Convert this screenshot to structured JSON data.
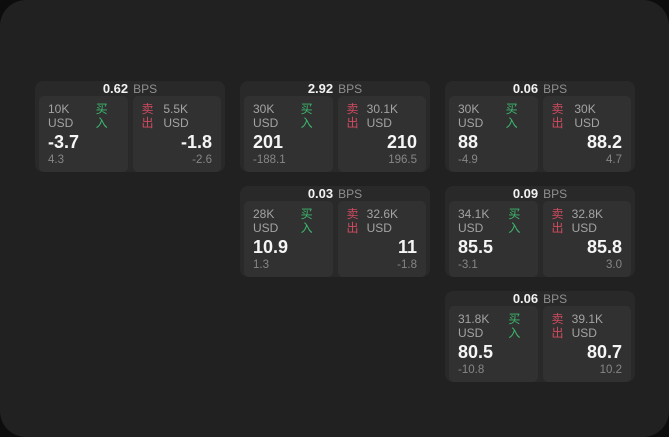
{
  "labels": {
    "bps": "BPS",
    "buy": "买入",
    "sell": "卖出"
  },
  "colors": {
    "backdrop": "#0d0d0d",
    "window_bg": "#212121",
    "card_bg": "#292929",
    "panel_bg": "#313131",
    "buy_green": "#3cb96e",
    "sell_red": "#d14b60",
    "primary_text": "#f5f5f5",
    "secondary_text": "#a3a3a3",
    "muted_text": "#868686"
  },
  "cards": [
    {
      "bps": "0.62",
      "buy_amount": "10K USD",
      "buy_value": "-3.7",
      "buy_sub": "4.3",
      "sell_amount": "5.5K USD",
      "sell_value": "-1.8",
      "sell_sub": "-2.6"
    },
    {
      "bps": "2.92",
      "buy_amount": "30K USD",
      "buy_value": "201",
      "buy_sub": "-188.1",
      "sell_amount": "30.1K USD",
      "sell_value": "210",
      "sell_sub": "196.5"
    },
    {
      "bps": "0.06",
      "buy_amount": "30K USD",
      "buy_value": "88",
      "buy_sub": "-4.9",
      "sell_amount": "30K USD",
      "sell_value": "88.2",
      "sell_sub": "4.7"
    },
    {
      "bps": "0.03",
      "buy_amount": "28K USD",
      "buy_value": "10.9",
      "buy_sub": "1.3",
      "sell_amount": "32.6K USD",
      "sell_value": "11",
      "sell_sub": "-1.8"
    },
    {
      "bps": "0.09",
      "buy_amount": "34.1K USD",
      "buy_value": "85.5",
      "buy_sub": "-3.1",
      "sell_amount": "32.8K USD",
      "sell_value": "85.8",
      "sell_sub": "3.0"
    },
    {
      "bps": "0.06",
      "buy_amount": "31.8K USD",
      "buy_value": "80.5",
      "buy_sub": "-10.8",
      "sell_amount": "39.1K USD",
      "sell_value": "80.7",
      "sell_sub": "10.2"
    }
  ]
}
